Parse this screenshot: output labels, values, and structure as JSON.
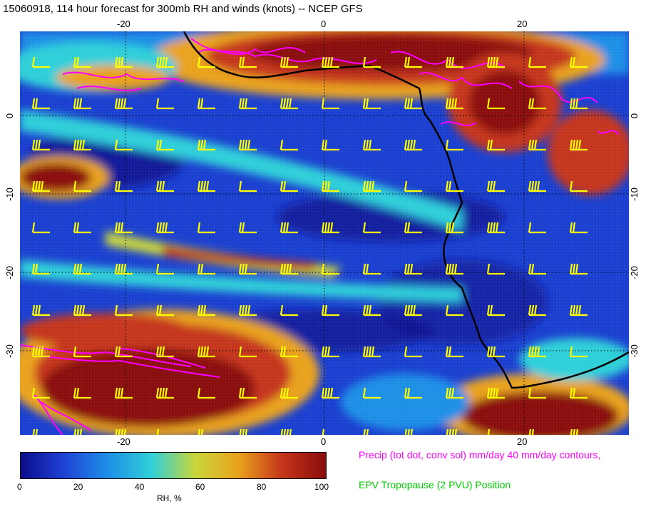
{
  "title": "15060918, 114 hour forecast for 300mb RH and winds (knots) -- NCEP GFS",
  "map": {
    "lon_ticks": [
      "-20",
      "0",
      "20"
    ],
    "lat_ticks": [
      "0",
      "-10",
      "-20",
      "-30"
    ],
    "rh_colors": [
      "#0b0b8a",
      "#1f43d6",
      "#1e8fe6",
      "#2fcfd9",
      "#c9d63a",
      "#e9a21d",
      "#c5351a",
      "#8a0c0c"
    ],
    "precip_color": "#ff00ff",
    "coast_color": "#000000",
    "barb_color": "#ffff00"
  },
  "colorbar": {
    "label": "RH, %",
    "ticks": [
      "0",
      "20",
      "40",
      "60",
      "80",
      "100"
    ]
  },
  "legend": {
    "precip": "Precip (tot dot, conv sol) mm/day 40 mm/day contours,",
    "epv": "EPV Tropopause (2 PVU) Position",
    "precip_color": "#ff00ff",
    "epv_color": "#00cc00"
  }
}
